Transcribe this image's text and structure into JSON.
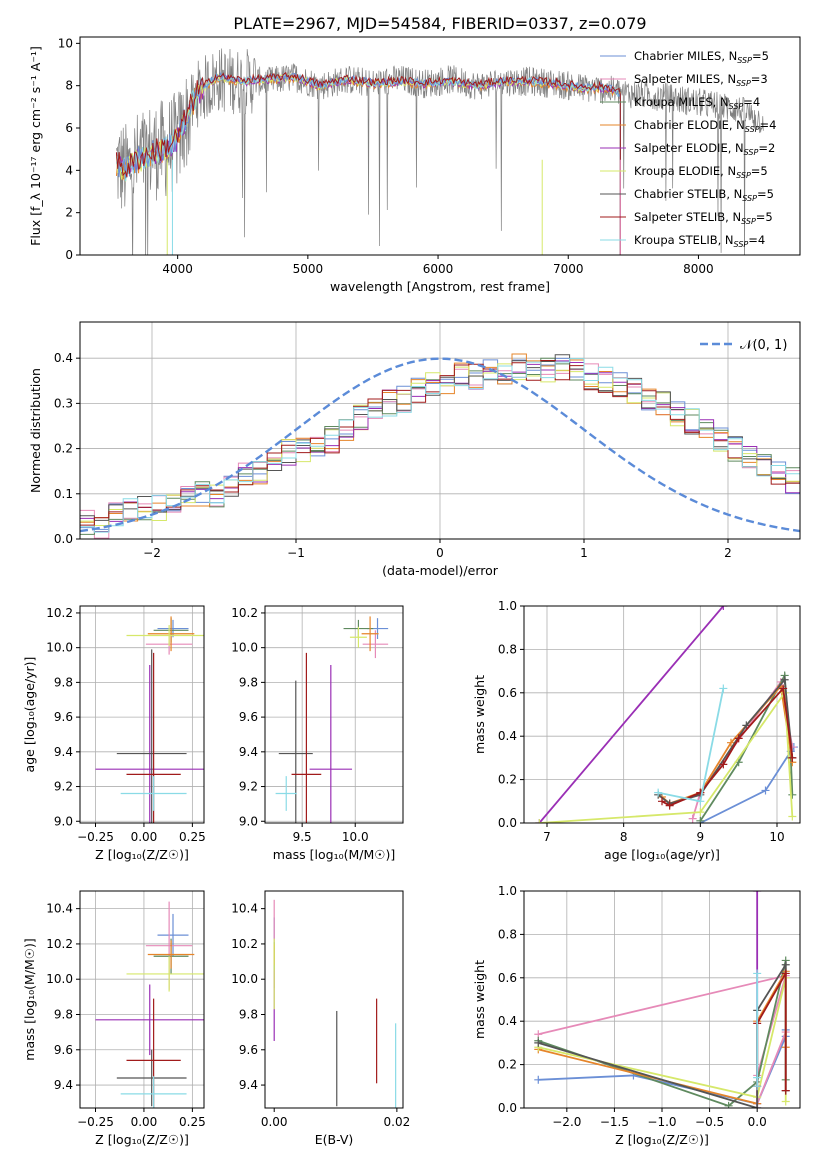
{
  "figure_title": "PLATE=2967, MJD=54584, FIBERID=0337, z=0.079",
  "colors": {
    "c0": "#6b8fd6",
    "c1": "#e68ab8",
    "c2": "#5f8a5f",
    "c3": "#e6852a",
    "c4": "#9a2fb5",
    "c5": "#d6e86a",
    "c6": "#555555",
    "c7": "#a11b1b",
    "c8": "#8adbe6",
    "gauss": "#5b8bd8",
    "obs": "#808080"
  },
  "chart_data": [
    {
      "id": "spectrum",
      "type": "line",
      "title": "PLATE=2967, MJD=54584, FIBERID=0337, z=0.079",
      "xlabel": "wavelength [Angstrom, rest frame]",
      "ylabel": "Flux [f_λ 10⁻¹⁷ erg cm⁻² s⁻¹ A⁻¹]",
      "xlim": [
        3250,
        8780
      ],
      "ylim": [
        0,
        10.3
      ],
      "xticks": [
        4000,
        5000,
        6000,
        7000,
        8000
      ],
      "yticks": [
        0,
        2,
        4,
        6,
        8,
        10
      ],
      "grid": false,
      "legend_placement": "right",
      "legend": [
        "Chabrier MILES, N_SSP=5",
        "Salpeter MILES, N_SSP=3",
        "Kroupa MILES, N_SSP=4",
        "Chabrier ELODIE, N_SSP=4",
        "Salpeter ELODIE, N_SSP=2",
        "Kroupa ELODIE, N_SSP=5",
        "Chabrier STELIB, N_SSP=5",
        "Salpeter STELIB, N_SSP=5",
        "Kroupa STELIB, N_SSP=4"
      ],
      "observed": {
        "x": [
          3530,
          3600,
          3700,
          3800,
          3900,
          4000,
          4150,
          4300,
          4500,
          4700,
          4900,
          5100,
          5300,
          5500,
          5700,
          5900,
          6100,
          6300,
          6500,
          6700,
          6900,
          7100,
          7300,
          7500,
          7700,
          7900,
          8100,
          8300,
          8500
        ],
        "y": [
          4.3,
          3.9,
          4.5,
          4.9,
          5.0,
          5.4,
          7.6,
          8.3,
          8.2,
          8.2,
          8.4,
          8.0,
          8.3,
          8.1,
          8.3,
          8.1,
          8.3,
          8.0,
          8.2,
          8.2,
          8.1,
          7.9,
          7.8,
          7.6,
          7.5,
          7.3,
          7.1,
          6.9,
          6.3
        ]
      },
      "model": {
        "x": [
          3530,
          3600,
          3700,
          3800,
          3900,
          4000,
          4150,
          4300,
          4500,
          4700,
          4900,
          5100,
          5300,
          5500,
          5700,
          5900,
          6100,
          6300,
          6500,
          6700,
          6900,
          7100,
          7300,
          7400
        ],
        "y": [
          4.3,
          4.0,
          4.5,
          4.8,
          5.0,
          5.5,
          7.7,
          8.4,
          8.2,
          8.3,
          8.4,
          8.0,
          8.3,
          8.1,
          8.2,
          8.1,
          8.2,
          8.0,
          8.2,
          8.2,
          8.1,
          7.9,
          7.9,
          7.6
        ]
      }
    },
    {
      "id": "residuals",
      "type": "line",
      "xlabel": "(data-model)/error",
      "ylabel": "Normed distribution",
      "xlim": [
        -2.5,
        2.5
      ],
      "ylim": [
        0,
        0.48
      ],
      "xticks": [
        -2,
        -1,
        0,
        1,
        2
      ],
      "yticks": [
        0.0,
        0.1,
        0.2,
        0.3,
        0.4
      ],
      "grid": true,
      "legend_placement": "top-right",
      "legend": [
        "𝒩(0, 1)"
      ],
      "bins": {
        "edges_start": -2.5,
        "width": 0.1
      },
      "hist_base": [
        0.04,
        0.03,
        0.05,
        0.06,
        0.07,
        0.07,
        0.08,
        0.09,
        0.1,
        0.1,
        0.12,
        0.14,
        0.15,
        0.17,
        0.19,
        0.2,
        0.21,
        0.22,
        0.24,
        0.27,
        0.29,
        0.3,
        0.31,
        0.33,
        0.34,
        0.35,
        0.36,
        0.36,
        0.37,
        0.37,
        0.38,
        0.37,
        0.37,
        0.38,
        0.37,
        0.36,
        0.35,
        0.34,
        0.33,
        0.31,
        0.3,
        0.28,
        0.26,
        0.24,
        0.22,
        0.2,
        0.18,
        0.16,
        0.15,
        0.13,
        0.12,
        0.11,
        0.1,
        0.09,
        0.08,
        0.07,
        0.06,
        0.05,
        0.05,
        0.04
      ]
    },
    {
      "id": "age-vs-Z",
      "type": "scatter",
      "xlabel": "Z [log₁₀(Z/Z☉)]",
      "ylabel": "age  [log₁₀(age/yr)]",
      "xlim": [
        -0.33,
        0.31
      ],
      "ylim": [
        8.99,
        10.24
      ],
      "xticks": [
        -0.25,
        0.0,
        0.25
      ],
      "xtick_labels": [
        "−0.25",
        "0.00",
        "0.25"
      ],
      "yticks": [
        9.0,
        9.2,
        9.4,
        9.6,
        9.8,
        10.0,
        10.2
      ],
      "grid": true,
      "points": [
        {
          "c": "c0",
          "x": 0.15,
          "xerr": 0.08,
          "y": 10.11,
          "yerr": 0.05
        },
        {
          "c": "c1",
          "x": 0.13,
          "xerr": 0.12,
          "y": 10.02,
          "yerr": 0.06
        },
        {
          "c": "c2",
          "x": 0.14,
          "xerr": 0.09,
          "y": 10.1,
          "yerr": 0.07
        },
        {
          "c": "c3",
          "x": 0.14,
          "xerr": 0.12,
          "y": 10.08,
          "yerr": 0.1
        },
        {
          "c": "c4",
          "x": 0.03,
          "xerr": 0.28,
          "y": 9.3,
          "yerr": 0.6
        },
        {
          "c": "c5",
          "x": 0.13,
          "xerr": 0.22,
          "y": 10.07,
          "yerr": 0.06
        },
        {
          "c": "c6",
          "x": 0.04,
          "xerr": 0.18,
          "y": 9.39,
          "yerr": 0.6
        },
        {
          "c": "c7",
          "x": 0.05,
          "xerr": 0.14,
          "y": 9.27,
          "yerr": 0.7
        },
        {
          "c": "c8",
          "x": 0.05,
          "xerr": 0.17,
          "y": 9.16,
          "yerr": 0.1
        }
      ]
    },
    {
      "id": "age-vs-mass",
      "type": "scatter",
      "xlabel": "mass [log₁₀(M/M☉)]",
      "ylabel": "",
      "xlim": [
        9.15,
        10.45
      ],
      "ylim": [
        8.99,
        10.24
      ],
      "xticks": [
        9.5,
        10.0
      ],
      "xtick_labels": [
        "9.5",
        "10.0"
      ],
      "yticks": [
        9.0,
        9.2,
        9.4,
        9.6,
        9.8,
        10.0,
        10.2
      ],
      "grid": true,
      "points": [
        {
          "c": "c0",
          "x": 10.21,
          "xerr": 0.1,
          "y": 10.11,
          "yerr": 0.06
        },
        {
          "c": "c1",
          "x": 10.19,
          "xerr": 0.12,
          "y": 10.02,
          "yerr": 0.08
        },
        {
          "c": "c2",
          "x": 10.03,
          "xerr": 0.14,
          "y": 10.11,
          "yerr": 0.05
        },
        {
          "c": "c3",
          "x": 10.14,
          "xerr": 0.08,
          "y": 10.08,
          "yerr": 0.1
        },
        {
          "c": "c4",
          "x": 9.77,
          "xerr": 0.2,
          "y": 9.3,
          "yerr": 0.6
        },
        {
          "c": "c5",
          "x": 10.03,
          "xerr": 0.08,
          "y": 10.06,
          "yerr": 0.06
        },
        {
          "c": "c6",
          "x": 9.44,
          "xerr": 0.16,
          "y": 9.39,
          "yerr": 0.42
        },
        {
          "c": "c7",
          "x": 9.54,
          "xerr": 0.14,
          "y": 9.27,
          "yerr": 0.7
        },
        {
          "c": "c8",
          "x": 9.35,
          "xerr": 0.1,
          "y": 9.16,
          "yerr": 0.1
        }
      ]
    },
    {
      "id": "weight-vs-age",
      "type": "line",
      "xlabel": "age  [log₁₀(age/yr)]",
      "ylabel": "mass weight",
      "xlim": [
        6.7,
        10.3
      ],
      "ylim": [
        0,
        1.0
      ],
      "xticks": [
        7,
        8,
        9,
        10
      ],
      "yticks": [
        0.0,
        0.2,
        0.4,
        0.6,
        0.8,
        1.0
      ],
      "grid": true,
      "series": [
        {
          "c": "c0",
          "x": [
            9.0,
            9.85,
            10.18,
            10.22
          ],
          "y": [
            0.0,
            0.15,
            0.33,
            0.35
          ]
        },
        {
          "c": "c1",
          "x": [
            8.9,
            9.0,
            10.05,
            10.2
          ],
          "y": [
            0.02,
            0.14,
            0.65,
            0.35
          ]
        },
        {
          "c": "c2",
          "x": [
            9.0,
            9.5,
            10.1,
            10.18,
            10.2
          ],
          "y": [
            0.01,
            0.28,
            0.68,
            0.3,
            0.13
          ]
        },
        {
          "c": "c3",
          "x": [
            8.5,
            8.6,
            9.0,
            9.4,
            10.05,
            10.2
          ],
          "y": [
            0.12,
            0.09,
            0.14,
            0.37,
            0.63,
            0.28
          ]
        },
        {
          "c": "c4",
          "x": [
            6.9,
            9.3
          ],
          "y": [
            0.0,
            1.0
          ]
        },
        {
          "c": "c5",
          "x": [
            6.9,
            9.0,
            10.1,
            10.2
          ],
          "y": [
            0.0,
            0.05,
            0.6,
            0.03
          ]
        },
        {
          "c": "c6",
          "x": [
            8.45,
            8.6,
            9.0,
            9.6,
            10.1,
            10.2
          ],
          "y": [
            0.13,
            0.09,
            0.13,
            0.45,
            0.66,
            0.3
          ]
        },
        {
          "c": "c7",
          "x": [
            8.5,
            8.6,
            9.0,
            9.3,
            9.5,
            10.08,
            10.2
          ],
          "y": [
            0.1,
            0.08,
            0.14,
            0.27,
            0.39,
            0.62,
            0.3
          ]
        },
        {
          "c": "c8",
          "x": [
            8.45,
            9.0,
            9.3
          ],
          "y": [
            0.14,
            0.1,
            0.62
          ]
        }
      ]
    },
    {
      "id": "mass-vs-Z",
      "type": "scatter",
      "xlabel": "Z [log₁₀(Z/Z☉)]",
      "ylabel": "mass [log₁₀(M/M☉)]",
      "xlim": [
        -0.33,
        0.31
      ],
      "ylim": [
        9.27,
        10.5
      ],
      "xticks": [
        -0.25,
        0.0,
        0.25
      ],
      "xtick_labels": [
        "−0.25",
        "0.00",
        "0.25"
      ],
      "yticks": [
        9.4,
        9.6,
        9.8,
        10.0,
        10.2,
        10.4
      ],
      "grid": true,
      "points": [
        {
          "c": "c0",
          "x": 0.15,
          "xerr": 0.08,
          "y": 10.25,
          "yerr": 0.12
        },
        {
          "c": "c1",
          "x": 0.13,
          "xerr": 0.12,
          "y": 10.19,
          "yerr": 0.25
        },
        {
          "c": "c2",
          "x": 0.14,
          "xerr": 0.09,
          "y": 10.13,
          "yerr": 0.1
        },
        {
          "c": "c3",
          "x": 0.14,
          "xerr": 0.12,
          "y": 10.14,
          "yerr": 0.08
        },
        {
          "c": "c4",
          "x": 0.03,
          "xerr": 0.28,
          "y": 9.77,
          "yerr": 0.2
        },
        {
          "c": "c5",
          "x": 0.13,
          "xerr": 0.22,
          "y": 10.03,
          "yerr": 0.1
        },
        {
          "c": "c6",
          "x": 0.04,
          "xerr": 0.18,
          "y": 9.44,
          "yerr": 0.16
        },
        {
          "c": "c7",
          "x": 0.05,
          "xerr": 0.14,
          "y": 9.54,
          "yerr": 0.35
        },
        {
          "c": "c8",
          "x": 0.05,
          "xerr": 0.17,
          "y": 9.35,
          "yerr": 0.1
        }
      ]
    },
    {
      "id": "mass-vs-EBV",
      "type": "scatter",
      "xlabel": "E(B-V)",
      "ylabel": "",
      "xlim": [
        -0.0015,
        0.021
      ],
      "ylim": [
        9.27,
        10.5
      ],
      "xticks": [
        0.0,
        0.02
      ],
      "xtick_labels": [
        "0.00",
        "0.02"
      ],
      "yticks": [
        9.4,
        9.6,
        9.8,
        10.0,
        10.2,
        10.4
      ],
      "grid": false,
      "points": [
        {
          "c": "c0",
          "x": 0.0,
          "xerr": 0,
          "y": 10.25,
          "yerr": 0.1
        },
        {
          "c": "c1",
          "x": 0.0,
          "xerr": 0,
          "y": 10.2,
          "yerr": 0.25
        },
        {
          "c": "c2",
          "x": 0.0,
          "xerr": 0,
          "y": 10.13,
          "yerr": 0.08
        },
        {
          "c": "c3",
          "x": 0.0,
          "xerr": 0,
          "y": 10.14,
          "yerr": 0.06
        },
        {
          "c": "c4",
          "x": 0.0,
          "xerr": 0,
          "y": 9.85,
          "yerr": 0.2
        },
        {
          "c": "c5",
          "x": 0.0,
          "xerr": 0,
          "y": 10.03,
          "yerr": 0.2
        },
        {
          "c": "c6",
          "x": 0.0102,
          "xerr": 0,
          "y": 9.55,
          "yerr": 0.27
        },
        {
          "c": "c7",
          "x": 0.0167,
          "xerr": 0,
          "y": 9.65,
          "yerr": 0.24
        },
        {
          "c": "c8",
          "x": 0.0198,
          "xerr": 0,
          "y": 9.5,
          "yerr": 0.25
        }
      ]
    },
    {
      "id": "weight-vs-Z",
      "type": "line",
      "xlabel": "Z [log₁₀(Z/Z☉)]",
      "ylabel": "mass weight",
      "xlim": [
        -2.45,
        0.45
      ],
      "ylim": [
        0,
        1.0
      ],
      "xticks": [
        -2.0,
        -1.5,
        -1.0,
        -0.5,
        0.0
      ],
      "xtick_labels": [
        "−2.0",
        "−1.5",
        "−1.0",
        "−0.5",
        "0.0"
      ],
      "yticks": [
        0.0,
        0.2,
        0.4,
        0.6,
        0.8,
        1.0
      ],
      "grid": true,
      "series": [
        {
          "c": "c0",
          "x": [
            -2.3,
            -1.3,
            0.0,
            0.3,
            0.3
          ],
          "y": [
            0.13,
            0.15,
            0.02,
            0.33,
            0.36
          ]
        },
        {
          "c": "c1",
          "x": [
            -2.3,
            0.3,
            0.0,
            0.0,
            0.3
          ],
          "y": [
            0.34,
            0.61,
            0.15,
            0.02,
            0.35
          ]
        },
        {
          "c": "c2",
          "x": [
            -2.3,
            -0.3,
            0.0,
            0.3,
            0.3
          ],
          "y": [
            0.31,
            0.01,
            0.12,
            0.68,
            0.13
          ]
        },
        {
          "c": "c3",
          "x": [
            -2.3,
            0.0,
            0.0,
            0.3,
            0.3
          ],
          "y": [
            0.27,
            0.02,
            0.4,
            0.63,
            0.28
          ]
        },
        {
          "c": "c4",
          "x": [
            0.0,
            0.0
          ],
          "y": [
            0.0,
            1.0
          ]
        },
        {
          "c": "c5",
          "x": [
            -2.3,
            0.0,
            0.3,
            0.3
          ],
          "y": [
            0.28,
            0.05,
            0.6,
            0.03
          ]
        },
        {
          "c": "c6",
          "x": [
            -2.3,
            0.0,
            0.0,
            0.3,
            0.3
          ],
          "y": [
            0.3,
            0.0,
            0.45,
            0.66,
            0.08
          ]
        },
        {
          "c": "c7",
          "x": [
            0.0,
            0.0,
            0.3,
            0.3
          ],
          "y": [
            0.1,
            0.39,
            0.62,
            0.08
          ]
        },
        {
          "c": "c8",
          "x": [
            0.0,
            0.0,
            0.0
          ],
          "y": [
            0.14,
            0.62,
            0.1
          ]
        }
      ]
    }
  ]
}
